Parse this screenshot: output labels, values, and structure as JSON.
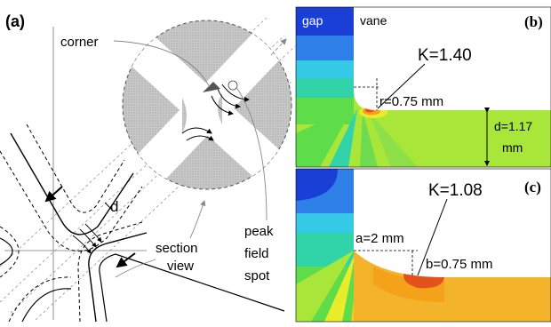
{
  "panel_a": {
    "tag": "(a)",
    "labels": {
      "corner": "corner",
      "d": "d",
      "section_view_1": "section",
      "section_view_2": "view",
      "peak_1": "peak",
      "peak_2": "field",
      "peak_3": "spot"
    }
  },
  "panel_b": {
    "tag": "(b)",
    "gap": "gap",
    "vane": "vane",
    "k": "K=1.40",
    "r": "r=0.75 mm",
    "d_1": "d=1.17",
    "d_2": "mm"
  },
  "panel_c": {
    "tag": "(c)",
    "k": "K=1.08",
    "a": "a=2 mm",
    "b": "b=0.75 mm"
  },
  "colors": {
    "blue_dark": "#1a3fd6",
    "blue": "#2e7fe8",
    "cyan": "#35c9e6",
    "teal": "#31d4a8",
    "green": "#5fdc4a",
    "lime": "#a9e63a",
    "yellow": "#e9ec2a",
    "orange": "#f3a21a",
    "red": "#e4521c",
    "gray_fill": "#b8b8b8"
  }
}
